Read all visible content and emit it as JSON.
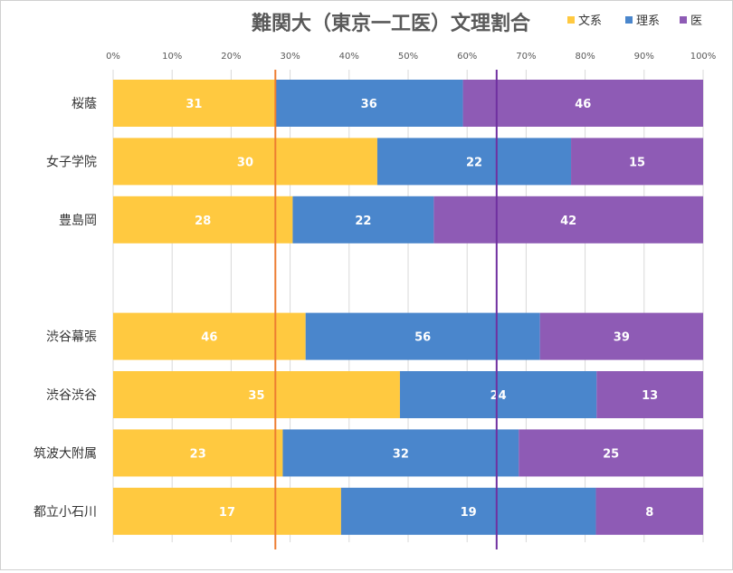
{
  "chart_data": {
    "type": "bar",
    "orientation": "horizontal",
    "stacked": "percent",
    "title": "難関大（東京一工医）文理割合",
    "categories": [
      "桜蔭",
      "女子学院",
      "豊島岡",
      "",
      "渋谷幕張",
      "渋谷渋谷",
      "筑波大附属",
      "都立小石川"
    ],
    "series": [
      {
        "name": "文系",
        "color": "#FFC940",
        "values": [
          31,
          30,
          28,
          null,
          46,
          35,
          23,
          17
        ]
      },
      {
        "name": "理系",
        "color": "#4A86CC",
        "values": [
          36,
          22,
          22,
          null,
          56,
          24,
          32,
          19
        ]
      },
      {
        "name": "医",
        "color": "#8E5BB5",
        "values": [
          46,
          15,
          42,
          null,
          39,
          13,
          25,
          8
        ]
      }
    ],
    "xticks": [
      "0%",
      "10%",
      "20%",
      "30%",
      "40%",
      "50%",
      "60%",
      "70%",
      "80%",
      "90%",
      "100%"
    ],
    "xlim": [
      0,
      100
    ],
    "grid": true,
    "legend": "top-right",
    "reference_lines": [
      {
        "value": 27.5,
        "color": "#ED7D31"
      },
      {
        "value": 65,
        "color": "#7030A0"
      }
    ]
  }
}
